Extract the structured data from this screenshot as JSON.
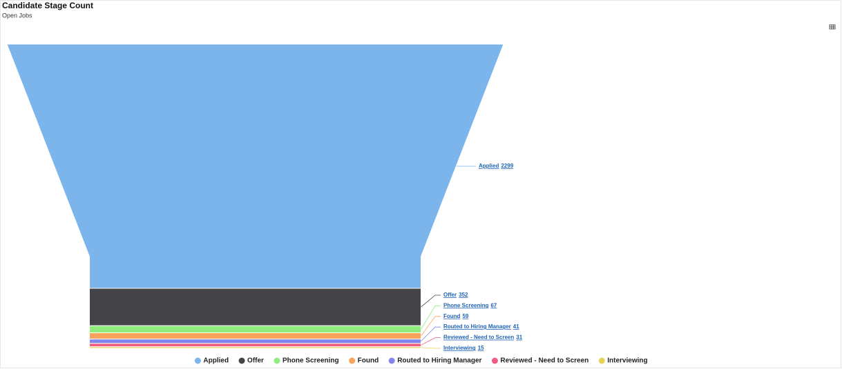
{
  "chart_data": {
    "type": "funnel",
    "title": "Candidate Stage Count",
    "subtitle": "Open Jobs",
    "categories": [
      "Applied",
      "Offer",
      "Phone Screening",
      "Found",
      "Routed to Hiring Manager",
      "Reviewed - Need to Screen",
      "Interviewing"
    ],
    "values": [
      2299,
      352,
      67,
      59,
      41,
      31,
      15
    ],
    "colors": [
      "#7cb5ec",
      "#434348",
      "#90ed7d",
      "#f7a35c",
      "#8085e9",
      "#f15c80",
      "#e4d354"
    ],
    "legend": "bottom"
  }
}
